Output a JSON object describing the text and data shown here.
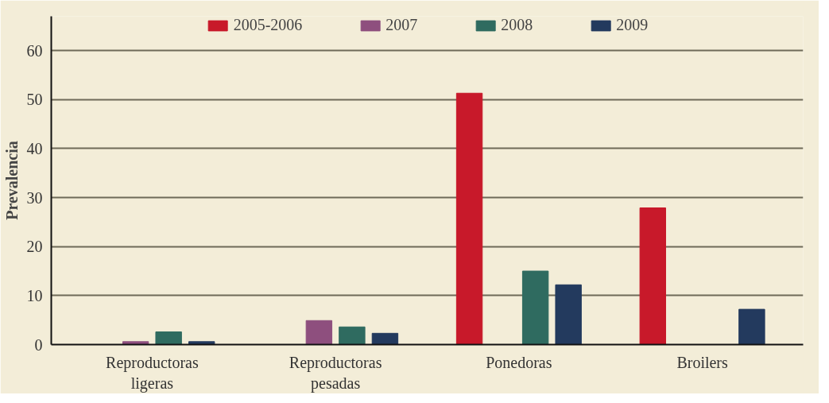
{
  "chart_data": {
    "type": "bar",
    "ylabel": "Prevalencia",
    "categories": [
      "Reproductoras\nligeras",
      "Reproductoras\npesadas",
      "Ponedoras",
      "Broilers"
    ],
    "series": [
      {
        "name": "2005-2006",
        "color": "#c8192a",
        "values": [
          null,
          null,
          51.3,
          27.9
        ]
      },
      {
        "name": "2007",
        "color": "#8e4f7e",
        "values": [
          0.6,
          4.9,
          null,
          null
        ]
      },
      {
        "name": "2008",
        "color": "#2f6b60",
        "values": [
          2.6,
          3.6,
          15.0,
          null
        ]
      },
      {
        "name": "2009",
        "color": "#233a5e",
        "values": [
          0.6,
          2.3,
          12.2,
          7.2
        ]
      }
    ],
    "ylim": [
      0,
      67
    ],
    "yticks": [
      0,
      10,
      20,
      30,
      40,
      50,
      60
    ],
    "grid": "y",
    "legend": "top"
  }
}
